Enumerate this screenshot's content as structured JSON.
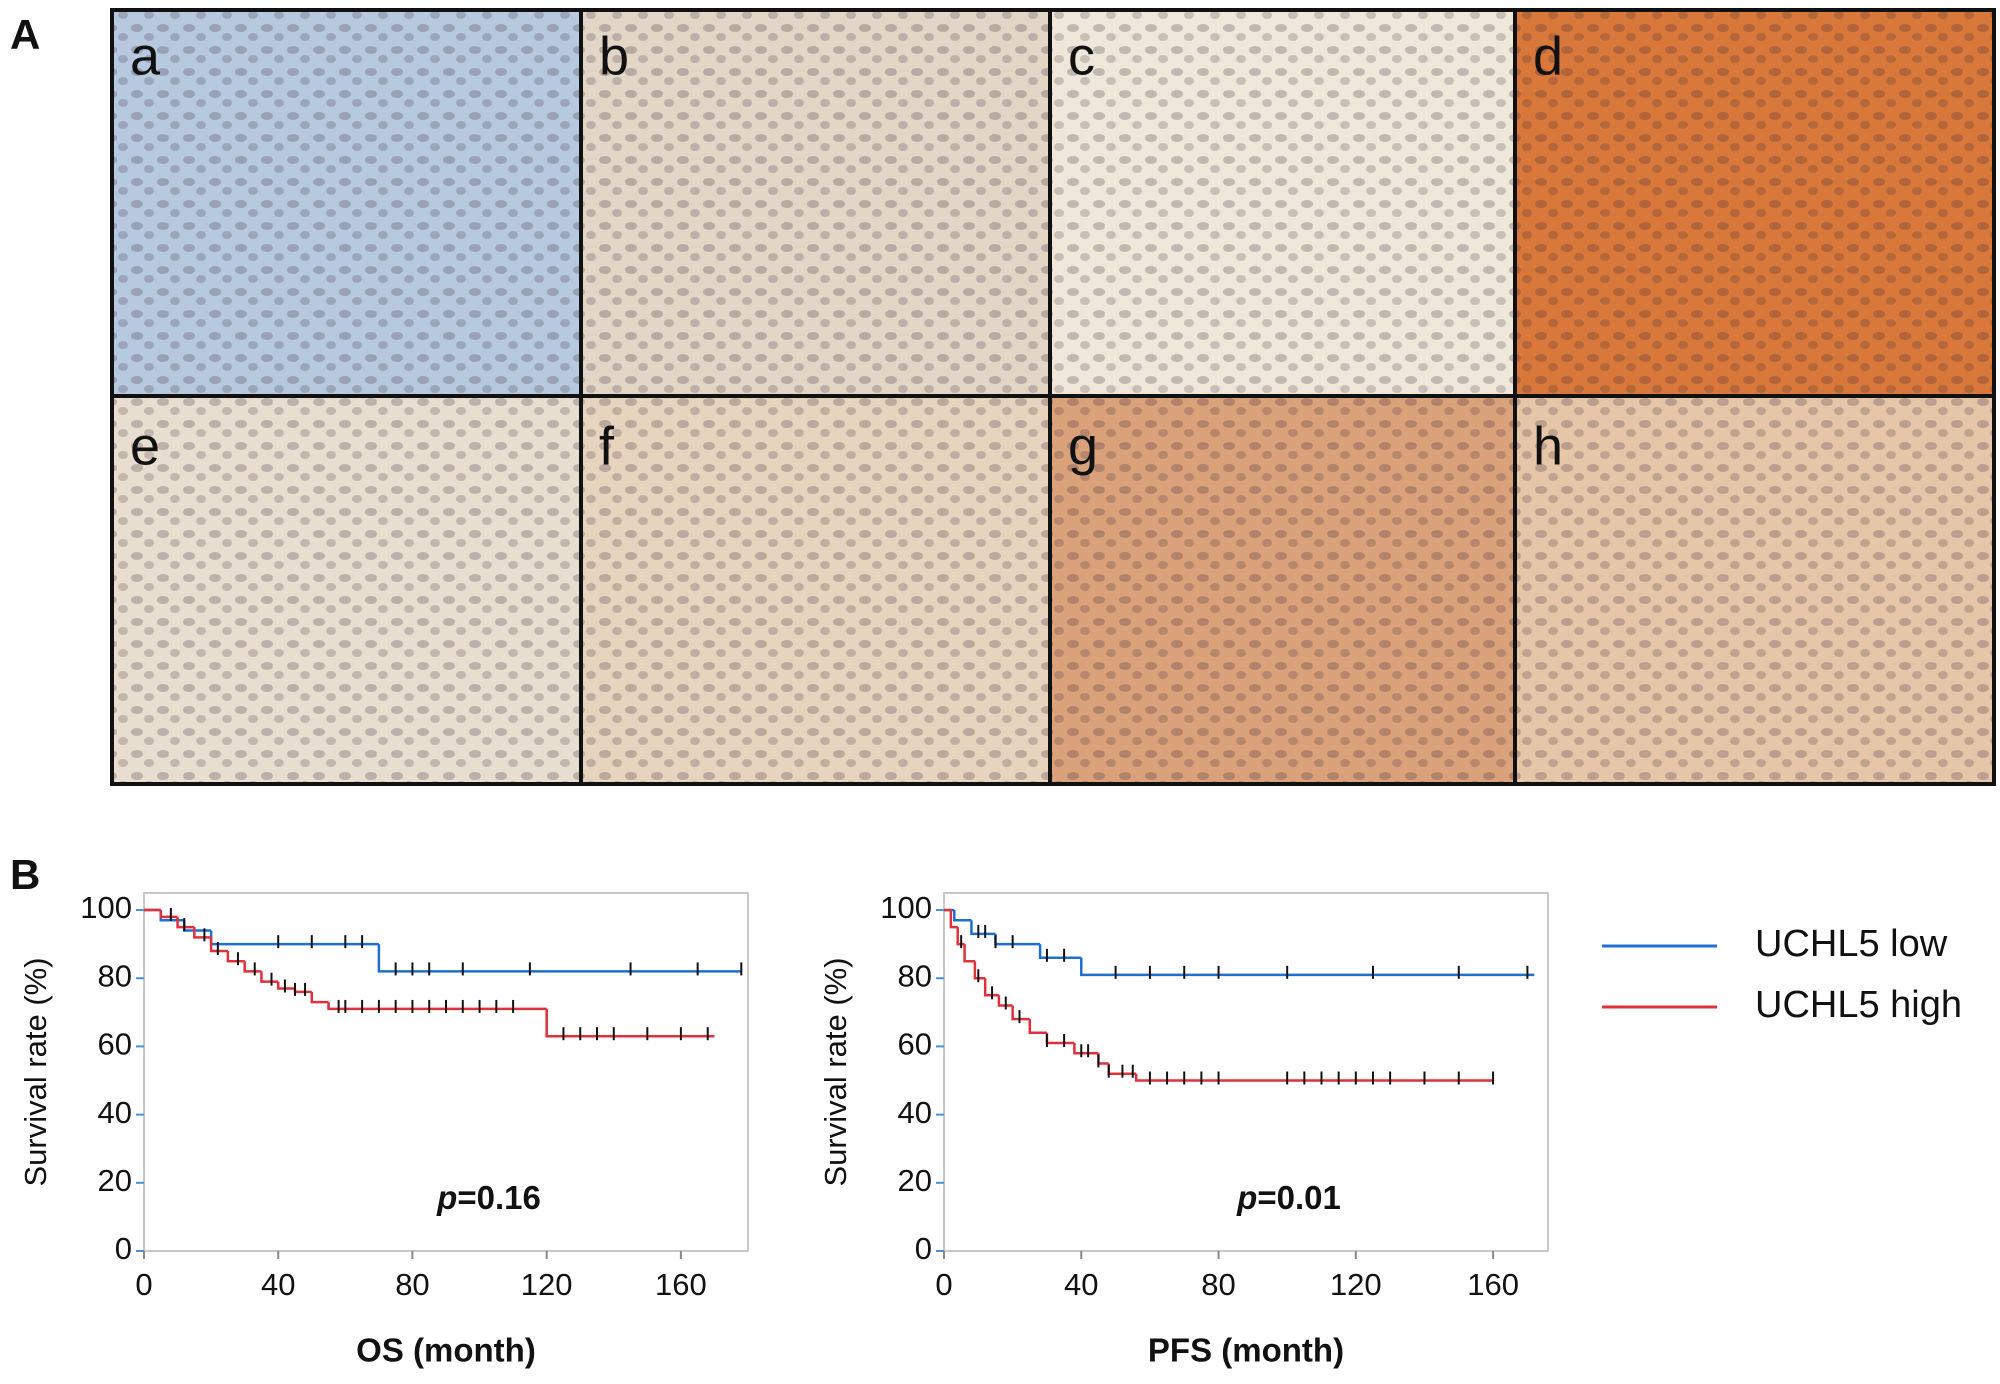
{
  "panel_labels": [
    "A",
    "B"
  ],
  "images": [
    "a",
    "b",
    "c",
    "d",
    "e",
    "f",
    "g",
    "h"
  ],
  "chart_data": [
    {
      "type": "km",
      "xlabel": "OS (month)",
      "ylabel": "Survival rate (%)",
      "annotation": {
        "italic": "p",
        "text": "=0.16"
      },
      "xlim": [
        0,
        180
      ],
      "ylim": [
        0,
        105
      ],
      "xticks": [
        0,
        40,
        80,
        120,
        160
      ],
      "yticks": [
        0,
        20,
        40,
        60,
        80,
        100
      ],
      "series": [
        {
          "color": "#1f6fd1",
          "x": [
            0,
            5,
            12,
            20,
            70,
            178
          ],
          "values": [
            100,
            97,
            94,
            90,
            82,
            82
          ],
          "censored_x": [
            40,
            50,
            60,
            65,
            75,
            80,
            85,
            95,
            115,
            145,
            165,
            178
          ]
        },
        {
          "color": "#e0303a",
          "x": [
            0,
            5,
            10,
            15,
            20,
            25,
            30,
            35,
            40,
            45,
            50,
            55,
            120,
            170
          ],
          "values": [
            100,
            98,
            95,
            92,
            88,
            85,
            82,
            79,
            77,
            76,
            73,
            71,
            63,
            63
          ],
          "censored_x": [
            8,
            12,
            18,
            22,
            28,
            33,
            38,
            42,
            45,
            48,
            58,
            60,
            65,
            70,
            75,
            80,
            85,
            90,
            95,
            100,
            105,
            110,
            125,
            130,
            135,
            140,
            150,
            160,
            168
          ]
        }
      ]
    },
    {
      "type": "km",
      "xlabel": "PFS (month)",
      "ylabel": "Survival rate (%)",
      "annotation": {
        "italic": "p",
        "text": "=0.01"
      },
      "xlim": [
        0,
        176
      ],
      "ylim": [
        0,
        105
      ],
      "xticks": [
        0,
        40,
        80,
        120,
        160
      ],
      "yticks": [
        0,
        20,
        40,
        60,
        80,
        100
      ],
      "series": [
        {
          "name": "UCHL5 low",
          "color": "#1f6fd1",
          "x": [
            0,
            3,
            8,
            15,
            28,
            40,
            172
          ],
          "values": [
            100,
            97,
            93,
            90,
            86,
            81,
            81
          ],
          "censored_x": [
            10,
            12,
            15,
            20,
            30,
            35,
            50,
            60,
            70,
            80,
            100,
            125,
            150,
            170
          ]
        },
        {
          "name": "UCHL5 high",
          "color": "#e0303a",
          "x": [
            0,
            2,
            4,
            6,
            9,
            12,
            16,
            20,
            25,
            30,
            38,
            45,
            48,
            56,
            160
          ],
          "values": [
            100,
            95,
            90,
            85,
            80,
            75,
            72,
            68,
            64,
            61,
            58,
            55,
            52,
            50,
            50
          ],
          "censored_x": [
            5,
            10,
            14,
            18,
            22,
            30,
            35,
            40,
            42,
            45,
            48,
            52,
            55,
            60,
            65,
            70,
            75,
            80,
            100,
            105,
            110,
            115,
            120,
            125,
            130,
            140,
            150,
            160
          ]
        }
      ]
    }
  ]
}
